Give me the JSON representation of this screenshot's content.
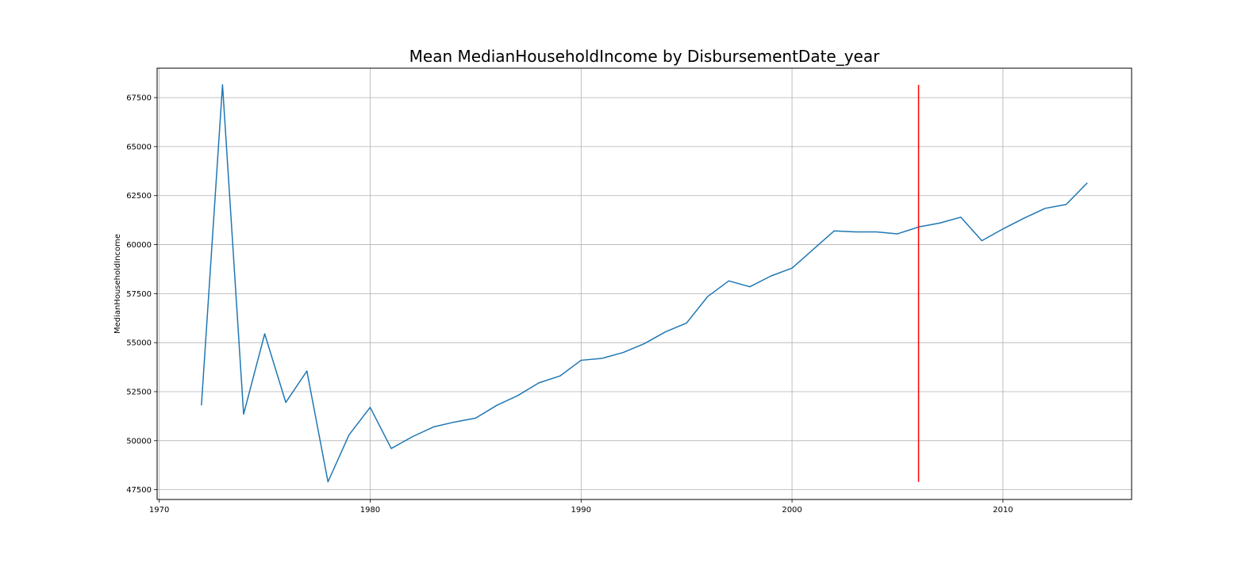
{
  "chart_data": {
    "type": "line",
    "title": "Mean MedianHouseholdIncome by DisbursementDate_year",
    "xlabel": "",
    "ylabel": "MedianHouseholdIncome",
    "xlim": [
      1969.9,
      2016.1
    ],
    "ylim": [
      47000,
      69000
    ],
    "xticks": [
      1970,
      1980,
      1990,
      2000,
      2010
    ],
    "yticks": [
      47500,
      50000,
      52500,
      55000,
      57500,
      60000,
      62500,
      65000,
      67500
    ],
    "grid": true,
    "series": [
      {
        "color": "#1f77b4",
        "x": [
          1972,
          1973,
          1974,
          1975,
          1976,
          1977,
          1978,
          1979,
          1980,
          1981,
          1982,
          1983,
          1984,
          1985,
          1986,
          1987,
          1988,
          1989,
          1990,
          1991,
          1992,
          1993,
          1994,
          1995,
          1996,
          1997,
          1998,
          1999,
          2000,
          2001,
          2002,
          2003,
          2004,
          2005,
          2006,
          2007,
          2008,
          2009,
          2010,
          2011,
          2012,
          2013,
          2014
        ],
        "y": [
          51800,
          68150,
          51350,
          55450,
          51950,
          53550,
          47900,
          50300,
          51700,
          49600,
          50200,
          50700,
          50950,
          51150,
          51800,
          52300,
          52950,
          53300,
          54100,
          54200,
          54500,
          54950,
          55550,
          56000,
          57350,
          58150,
          57850,
          58400,
          58800,
          59750,
          60700,
          60650,
          60650,
          60550,
          60900,
          61100,
          61400,
          60200,
          60800,
          61350,
          61850,
          62050,
          63150
        ]
      }
    ],
    "vline": {
      "x": 2006,
      "ymin": 47900,
      "ymax": 68150,
      "color": "#ff0000"
    }
  }
}
